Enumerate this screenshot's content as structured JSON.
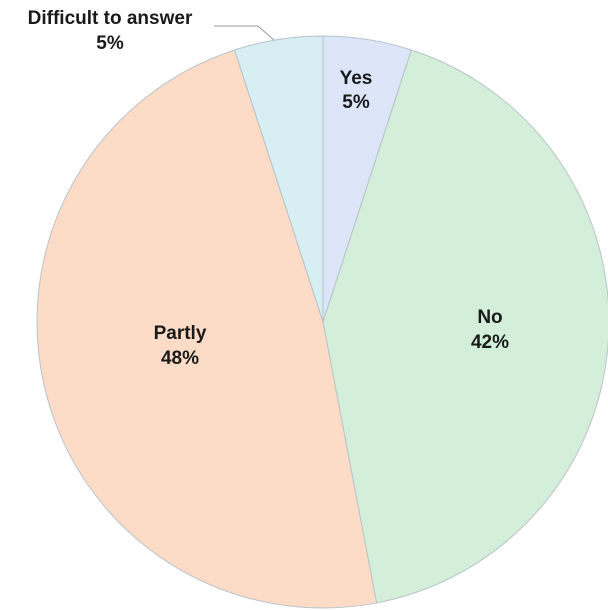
{
  "chart_data": {
    "type": "pie",
    "title": "",
    "slices": [
      {
        "label": "Yes",
        "value": 5,
        "value_label": "5%",
        "color": "#dce6f8"
      },
      {
        "label": "No",
        "value": 42,
        "value_label": "42%",
        "color": "#d4efd9"
      },
      {
        "label": "Partly",
        "value": 48,
        "value_label": "48%",
        "color": "#fcdcc6"
      },
      {
        "label": "Difficult to answer",
        "value": 5,
        "value_label": "5%",
        "color": "#d7eff2"
      }
    ],
    "start_angle": "12 o'clock",
    "direction": "clockwise",
    "legend": "none (labels on slices)"
  }
}
